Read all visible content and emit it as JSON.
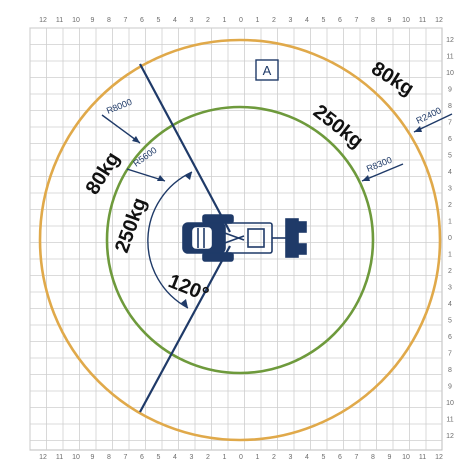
{
  "axis_ticks": [
    "12",
    "11",
    "10",
    "9",
    "8",
    "7",
    "6",
    "5",
    "4",
    "3",
    "2",
    "1",
    "0",
    "1",
    "2",
    "3",
    "4",
    "5",
    "6",
    "7",
    "8",
    "9",
    "10",
    "11",
    "12"
  ],
  "zone_label": "A",
  "outer_ring": {
    "capacity": "80kg",
    "color": "#e0a94a"
  },
  "inner_ring": {
    "capacity": "250kg",
    "color": "#6e9a3c"
  },
  "slew_angle": "120°",
  "radius_labels": {
    "left_outer": "R8000",
    "left_inner": "R5600",
    "right_inner": "R8300",
    "right_outer": "R2400"
  },
  "colors": {
    "structure": "#1f3a68",
    "grid": "#cfcfcf"
  }
}
